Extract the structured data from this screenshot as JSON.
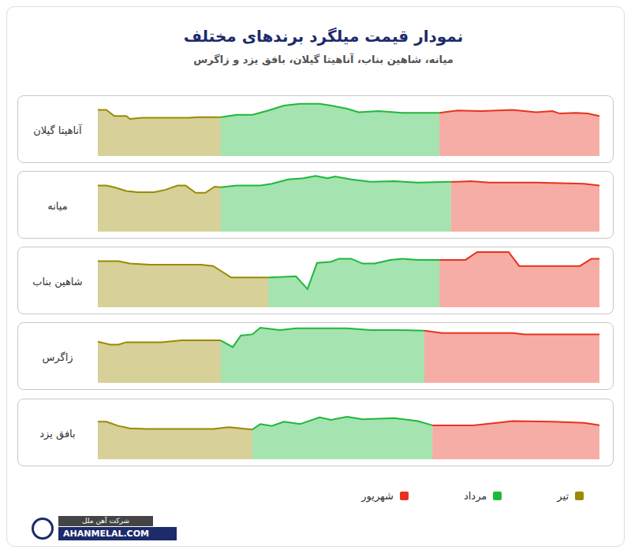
{
  "title": "نمودار قیمت میلگرد برندهای مختلف",
  "subtitle": "میانه، شاهین بناب، آناهیتا گیلان، بافق یزد و زاگرس",
  "footer": {
    "company": "شرکت آهن ملل",
    "website": "AHANMELAL.COM"
  },
  "chart_data": [
    {
      "type": "area",
      "title": "آناهیتا گیلان",
      "xlim": [
        0,
        100
      ],
      "ylim": [
        0,
        100
      ],
      "tick_labels": false,
      "legend": "bottom",
      "series": [
        {
          "name": "تیر",
          "color": "#9a8a00",
          "x": [
            0,
            1.7,
            3.3,
            5.7,
            6.4,
            8.8,
            18.2,
            19.8,
            24.5
          ],
          "values": [
            76,
            76,
            66,
            66,
            61,
            63,
            63,
            64,
            64
          ]
        },
        {
          "name": "مرداد",
          "color": "#1fb83a",
          "x": [
            24.5,
            27.7,
            30.8,
            34,
            37.1,
            40.3,
            44.2,
            46.5,
            49.7,
            52,
            56,
            60.7,
            65.4,
            68.1
          ],
          "values": [
            64,
            68,
            68,
            75,
            83,
            86,
            86,
            83,
            78,
            72,
            74,
            71,
            71,
            71
          ]
        },
        {
          "name": "شهریور",
          "color": "#e8321e",
          "x": [
            68.1,
            71.7,
            76.4,
            82.7,
            87.4,
            90.6,
            92.1,
            95.3,
            97.6,
            100
          ],
          "values": [
            71,
            75,
            74,
            76,
            72,
            74,
            70,
            71,
            70,
            66
          ]
        }
      ]
    },
    {
      "type": "area",
      "title": "میانه",
      "xlim": [
        0,
        100
      ],
      "ylim": [
        0,
        100
      ],
      "tick_labels": false,
      "legend": "bottom",
      "series": [
        {
          "name": "تیر",
          "color": "#9a8a00",
          "x": [
            0,
            1.7,
            3.3,
            5.7,
            8,
            11.2,
            13.5,
            15.9,
            17.5,
            19.5,
            21.4,
            23.3,
            24.5
          ],
          "values": [
            76,
            76,
            73,
            67,
            65,
            65,
            69,
            76,
            76,
            64,
            64,
            74,
            73
          ]
        },
        {
          "name": "مرداد",
          "color": "#1fb83a",
          "x": [
            24.5,
            27.7,
            32.4,
            34.7,
            37.9,
            41,
            43.4,
            45.8,
            47.3,
            50.5,
            54.4,
            59.1,
            63.8,
            70.4
          ],
          "values": [
            73,
            76,
            76,
            79,
            86,
            88,
            92,
            88,
            91,
            86,
            82,
            83,
            81,
            82
          ]
        },
        {
          "name": "شهریور",
          "color": "#e8321e",
          "x": [
            70.4,
            71.7,
            74.4,
            78,
            87.4,
            96.9,
            100
          ],
          "values": [
            82,
            82,
            83,
            81,
            81,
            79,
            76
          ]
        }
      ]
    },
    {
      "type": "area",
      "title": "شاهین بناب",
      "xlim": [
        0,
        100
      ],
      "ylim": [
        0,
        100
      ],
      "tick_labels": false,
      "legend": "bottom",
      "series": [
        {
          "name": "تیر",
          "color": "#9a8a00",
          "x": [
            0,
            4.1,
            6.4,
            10.4,
            20.6,
            23,
            26.6,
            34
          ],
          "values": [
            76,
            76,
            72,
            70,
            70,
            68,
            49,
            49
          ]
        },
        {
          "name": "مرداد",
          "color": "#1fb83a",
          "x": [
            34,
            39.5,
            41.8,
            43.7,
            46.5,
            48.1,
            50.5,
            52.8,
            55.2,
            58.3,
            60.7,
            63.8,
            68.1
          ],
          "values": [
            49,
            51,
            30,
            73,
            75,
            80,
            80,
            72,
            72,
            78,
            80,
            78,
            78
          ]
        },
        {
          "name": "شهریور",
          "color": "#e8321e",
          "x": [
            68.1,
            73.3,
            75.6,
            81.9,
            84,
            87.4,
            96.1,
            98.4,
            100
          ],
          "values": [
            78,
            78,
            91,
            91,
            68,
            68,
            68,
            80,
            80
          ]
        }
      ]
    },
    {
      "type": "area",
      "title": "زاگرس",
      "xlim": [
        0,
        100
      ],
      "ylim": [
        0,
        100
      ],
      "tick_labels": false,
      "legend": "bottom",
      "series": [
        {
          "name": "تیر",
          "color": "#9a8a00",
          "x": [
            0,
            2.5,
            4.1,
            5.7,
            12.7,
            16.7,
            24.5
          ],
          "values": [
            68,
            63,
            63,
            67,
            67,
            70,
            70
          ]
        },
        {
          "name": "مرداد",
          "color": "#1fb83a",
          "x": [
            24.5,
            26.9,
            28.5,
            30.8,
            32.4,
            36.3,
            39.5,
            49.7,
            54.4,
            59.9,
            65.1
          ],
          "values": [
            70,
            59,
            78,
            80,
            91,
            87,
            90,
            90,
            87,
            87,
            86
          ]
        },
        {
          "name": "شهریور",
          "color": "#e8321e",
          "x": [
            65.1,
            68.6,
            82.7,
            85.1,
            90.6,
            100
          ],
          "values": [
            86,
            82,
            82,
            80,
            80,
            80
          ]
        }
      ]
    },
    {
      "type": "area",
      "title": "بافق یزد",
      "xlim": [
        0,
        100
      ],
      "ylim": [
        0,
        100
      ],
      "tick_labels": false,
      "legend": "bottom",
      "series": [
        {
          "name": "تیر",
          "color": "#9a8a00",
          "x": [
            0,
            1.7,
            4.1,
            6.4,
            9.6,
            23,
            26.1,
            30.8
          ],
          "values": [
            62,
            62,
            55,
            51,
            50,
            50,
            53,
            49
          ]
        },
        {
          "name": "مرداد",
          "color": "#1fb83a",
          "x": [
            30.8,
            32.4,
            34.7,
            37.1,
            40.3,
            44.2,
            46.5,
            49.7,
            52.8,
            59.1,
            63.8,
            66.7
          ],
          "values": [
            49,
            58,
            55,
            62,
            58,
            69,
            65,
            70,
            66,
            68,
            63,
            56
          ]
        },
        {
          "name": "شهریور",
          "color": "#e8321e",
          "x": [
            66.7,
            74.8,
            79.6,
            82.7,
            90.6,
            96.9,
            100
          ],
          "values": [
            56,
            56,
            60,
            63,
            62,
            60,
            56
          ]
        }
      ]
    }
  ]
}
